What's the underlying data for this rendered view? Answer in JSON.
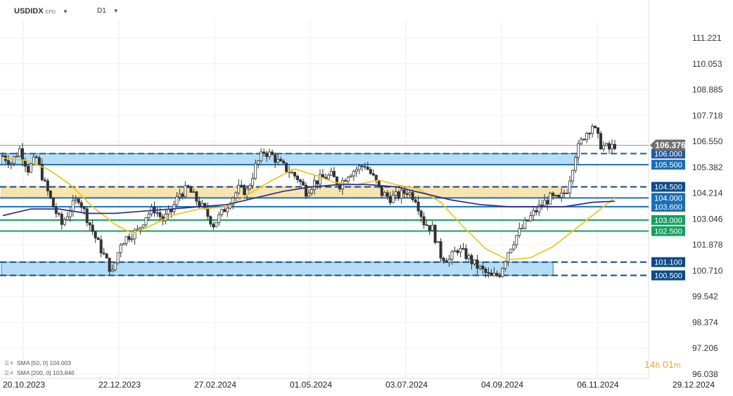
{
  "header": {
    "symbol": "USDIDX",
    "symbol_type": "CFD",
    "timeframe": "D1",
    "dropdown_icon": "chevron-down-icon"
  },
  "chart_data": {
    "type": "candlestick",
    "y_ticks": [
      "111.221",
      "110.053",
      "108.885",
      "107.718",
      "106.550",
      "105.382",
      "104.214",
      "103.046",
      "101.878",
      "100.710",
      "99.542",
      "98.374",
      "97.206",
      "96.038"
    ],
    "x_ticks": [
      "20.10.2023",
      "22.12.2023",
      "27.02.2024",
      "01.05.2024",
      "03.07.2024",
      "04.09.2024",
      "06.11.2024",
      "29.12.2024"
    ],
    "ylim": [
      96.038,
      111.221
    ],
    "current_price": "106.376",
    "levels": [
      {
        "label": "106.000",
        "value": 106.0,
        "style": "dashed",
        "color": "#1e5a9c"
      },
      {
        "label": "105.500",
        "value": 105.5,
        "style": "solid",
        "color": "#1a6fb8"
      },
      {
        "label": "104.500",
        "value": 104.5,
        "style": "dashed",
        "color": "#0c4a8a"
      },
      {
        "label": "104.000",
        "value": 104.0,
        "style": "solid",
        "color": "#1a6fb8"
      },
      {
        "label": "103.600",
        "value": 103.6,
        "style": "solid",
        "color": "#1a6fb8"
      },
      {
        "label": "103.000",
        "value": 103.0,
        "style": "solid",
        "color": "#15a060"
      },
      {
        "label": "102.500",
        "value": 102.5,
        "style": "solid",
        "color": "#15a060"
      },
      {
        "label": "101.100",
        "value": 101.1,
        "style": "dashed",
        "color": "#0c4a8a"
      },
      {
        "label": "100.500",
        "value": 100.5,
        "style": "dashed",
        "color": "#0c4a8a"
      }
    ],
    "zones": [
      {
        "from": 105.5,
        "to": 106.0,
        "color": "#a8d8f5"
      },
      {
        "from": 104.0,
        "to": 104.5,
        "color": "#f7dfa0"
      },
      {
        "from": 100.5,
        "to": 101.1,
        "color": "#a8d8f5"
      }
    ],
    "close_path": [
      [
        0,
        105.9
      ],
      [
        3,
        105.6
      ],
      [
        6,
        106.2
      ],
      [
        9,
        105.3
      ],
      [
        12,
        105.8
      ],
      [
        15,
        104.6
      ],
      [
        18,
        103.6
      ],
      [
        21,
        102.8
      ],
      [
        24,
        103.5
      ],
      [
        27,
        104.0
      ],
      [
        30,
        103.1
      ],
      [
        33,
        102.2
      ],
      [
        36,
        101.4
      ],
      [
        39,
        100.6
      ],
      [
        42,
        102.0
      ],
      [
        45,
        102.3
      ],
      [
        48,
        102.5
      ],
      [
        51,
        103.2
      ],
      [
        54,
        103.5
      ],
      [
        57,
        103.0
      ],
      [
        60,
        103.4
      ],
      [
        63,
        104.2
      ],
      [
        66,
        104.4
      ],
      [
        69,
        103.9
      ],
      [
        72,
        103.4
      ],
      [
        75,
        102.8
      ],
      [
        78,
        103.3
      ],
      [
        81,
        103.9
      ],
      [
        84,
        104.4
      ],
      [
        87,
        104.3
      ],
      [
        90,
        105.4
      ],
      [
        93,
        106.1
      ],
      [
        96,
        105.9
      ],
      [
        99,
        105.5
      ],
      [
        102,
        105.2
      ],
      [
        105,
        104.9
      ],
      [
        108,
        104.3
      ],
      [
        111,
        104.7
      ],
      [
        114,
        104.9
      ],
      [
        117,
        105.0
      ],
      [
        120,
        104.6
      ],
      [
        123,
        105.1
      ],
      [
        126,
        105.3
      ],
      [
        129,
        105.5
      ],
      [
        132,
        104.9
      ],
      [
        135,
        104.2
      ],
      [
        138,
        104.0
      ],
      [
        141,
        104.1
      ],
      [
        144,
        104.3
      ],
      [
        147,
        104.0
      ],
      [
        150,
        102.9
      ],
      [
        153,
        102.6
      ],
      [
        156,
        101.4
      ],
      [
        159,
        101.2
      ],
      [
        162,
        101.7
      ],
      [
        165,
        101.4
      ],
      [
        168,
        101.0
      ],
      [
        171,
        100.7
      ],
      [
        174,
        100.4
      ],
      [
        177,
        100.6
      ],
      [
        180,
        101.6
      ],
      [
        183,
        102.3
      ],
      [
        186,
        102.8
      ],
      [
        189,
        103.3
      ],
      [
        192,
        103.7
      ],
      [
        195,
        104.0
      ],
      [
        198,
        103.9
      ],
      [
        201,
        104.4
      ],
      [
        204,
        106.0
      ],
      [
        207,
        106.8
      ],
      [
        210,
        107.3
      ],
      [
        213,
        106.4
      ],
      [
        216,
        106.2
      ],
      [
        218,
        106.4
      ]
    ],
    "indicators": [
      {
        "name": "SMA [50, 0]",
        "value": "104.003",
        "color": "#f0c419"
      },
      {
        "name": "SMA [200, 0]",
        "value": "103.846",
        "color": "#2c2e8c"
      }
    ],
    "sma50": [
      [
        0,
        105.8
      ],
      [
        8,
        105.7
      ],
      [
        16,
        105.3
      ],
      [
        24,
        104.6
      ],
      [
        32,
        103.6
      ],
      [
        40,
        102.8
      ],
      [
        46,
        102.4
      ],
      [
        52,
        102.7
      ],
      [
        60,
        103.2
      ],
      [
        70,
        103.5
      ],
      [
        80,
        103.6
      ],
      [
        88,
        104.2
      ],
      [
        96,
        104.8
      ],
      [
        104,
        105.3
      ],
      [
        112,
        105.0
      ],
      [
        118,
        104.7
      ],
      [
        126,
        104.6
      ],
      [
        134,
        104.8
      ],
      [
        140,
        104.6
      ],
      [
        148,
        104.4
      ],
      [
        156,
        103.8
      ],
      [
        164,
        102.7
      ],
      [
        172,
        101.7
      ],
      [
        180,
        101.2
      ],
      [
        188,
        101.3
      ],
      [
        196,
        101.8
      ],
      [
        204,
        102.6
      ],
      [
        212,
        103.4
      ],
      [
        218,
        104.0
      ]
    ],
    "sma200": [
      [
        0,
        103.2
      ],
      [
        10,
        103.5
      ],
      [
        20,
        103.5
      ],
      [
        30,
        103.3
      ],
      [
        40,
        103.3
      ],
      [
        50,
        103.4
      ],
      [
        60,
        103.5
      ],
      [
        70,
        103.6
      ],
      [
        80,
        103.7
      ],
      [
        90,
        104.0
      ],
      [
        100,
        104.3
      ],
      [
        110,
        104.5
      ],
      [
        120,
        104.6
      ],
      [
        130,
        104.6
      ],
      [
        140,
        104.5
      ],
      [
        150,
        104.2
      ],
      [
        160,
        103.9
      ],
      [
        170,
        103.7
      ],
      [
        180,
        103.6
      ],
      [
        190,
        103.6
      ],
      [
        200,
        103.6
      ],
      [
        210,
        103.8
      ],
      [
        218,
        103.85
      ]
    ]
  },
  "timer": {
    "hours": "14",
    "hours_unit": "h",
    "minutes": "01",
    "minutes_unit": "m"
  }
}
